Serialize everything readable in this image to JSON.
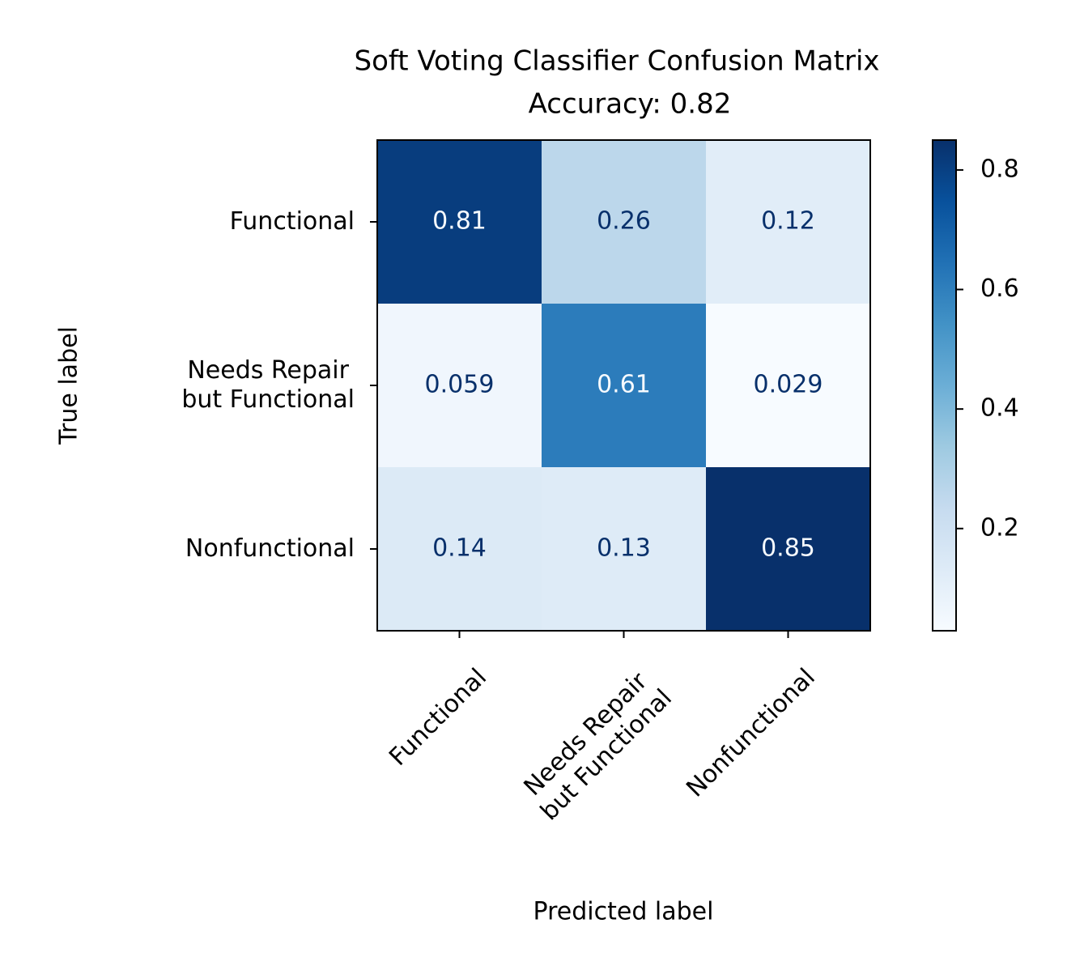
{
  "chart_data": {
    "type": "heatmap",
    "title": "Soft Voting Classifier Confusion Matrix",
    "subtitle": "Accuracy: 0.82",
    "x_label": "Predicted label",
    "y_label": "True label",
    "x_categories": [
      "Functional",
      "Needs Repair\nbut Functional",
      "Nonfunctional"
    ],
    "y_categories": [
      "Functional",
      "Needs Repair\nbut Functional",
      "Nonfunctional"
    ],
    "values": [
      [
        0.81,
        0.26,
        0.12
      ],
      [
        0.059,
        0.61,
        0.029
      ],
      [
        0.14,
        0.13,
        0.85
      ]
    ],
    "colormap": "Blues",
    "clim": [
      0.029,
      0.85
    ],
    "colorbar_ticks": [
      0.2,
      0.4,
      0.6,
      0.8
    ]
  }
}
